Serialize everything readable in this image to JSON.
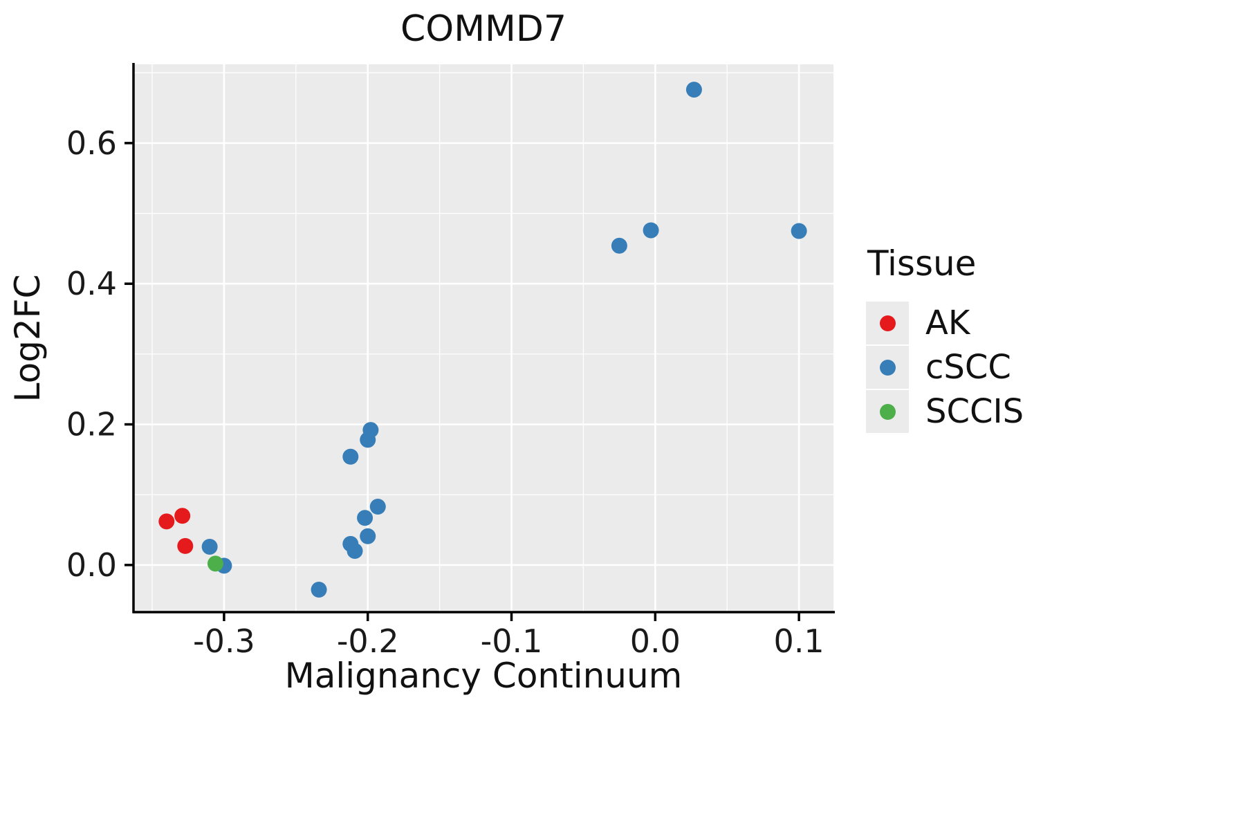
{
  "chart_data": {
    "type": "scatter",
    "title": "COMMD7",
    "xlabel": "Malignancy Continuum",
    "ylabel": "Log2FC",
    "legend_title": "Tissue",
    "legend_position": "right",
    "grid": true,
    "xlim": [
      -0.363,
      0.124
    ],
    "ylim": [
      -0.067,
      0.712
    ],
    "panel_bg": "#EBEBEB",
    "grid_color": "#FFFFFF",
    "axis_color": "#000000",
    "text_color": "#1A1A1A",
    "x_ticks": [
      {
        "value": -0.3,
        "label": "-0.3"
      },
      {
        "value": -0.2,
        "label": "-0.2"
      },
      {
        "value": -0.1,
        "label": "-0.1"
      },
      {
        "value": 0.0,
        "label": "0.0"
      },
      {
        "value": 0.1,
        "label": "0.1"
      }
    ],
    "y_ticks": [
      {
        "value": 0.0,
        "label": "0.0"
      },
      {
        "value": 0.2,
        "label": "0.2"
      },
      {
        "value": 0.4,
        "label": "0.4"
      },
      {
        "value": 0.6,
        "label": "0.6"
      }
    ],
    "x_minor": [
      -0.35,
      -0.25,
      -0.15,
      -0.05,
      0.05
    ],
    "y_minor": [
      0.1,
      0.3,
      0.5,
      0.7
    ],
    "series": [
      {
        "name": "AK",
        "color": "#E41A1C",
        "points": [
          [
            -0.34,
            0.062
          ],
          [
            -0.329,
            0.07
          ],
          [
            -0.327,
            0.027
          ]
        ]
      },
      {
        "name": "cSCC",
        "color": "#377EB8",
        "points": [
          [
            -0.31,
            0.026
          ],
          [
            -0.3,
            -0.001
          ],
          [
            -0.234,
            -0.035
          ],
          [
            -0.212,
            0.154
          ],
          [
            -0.212,
            0.03
          ],
          [
            -0.209,
            0.02
          ],
          [
            -0.198,
            0.192
          ],
          [
            -0.2,
            0.178
          ],
          [
            -0.202,
            0.067
          ],
          [
            -0.2,
            0.041
          ],
          [
            -0.193,
            0.083
          ],
          [
            -0.025,
            0.454
          ],
          [
            -0.003,
            0.476
          ],
          [
            0.027,
            0.676
          ],
          [
            0.1,
            0.475
          ]
        ]
      },
      {
        "name": "SCCIS",
        "color": "#4DAF4A",
        "points": [
          [
            -0.306,
            0.002
          ]
        ]
      }
    ]
  }
}
